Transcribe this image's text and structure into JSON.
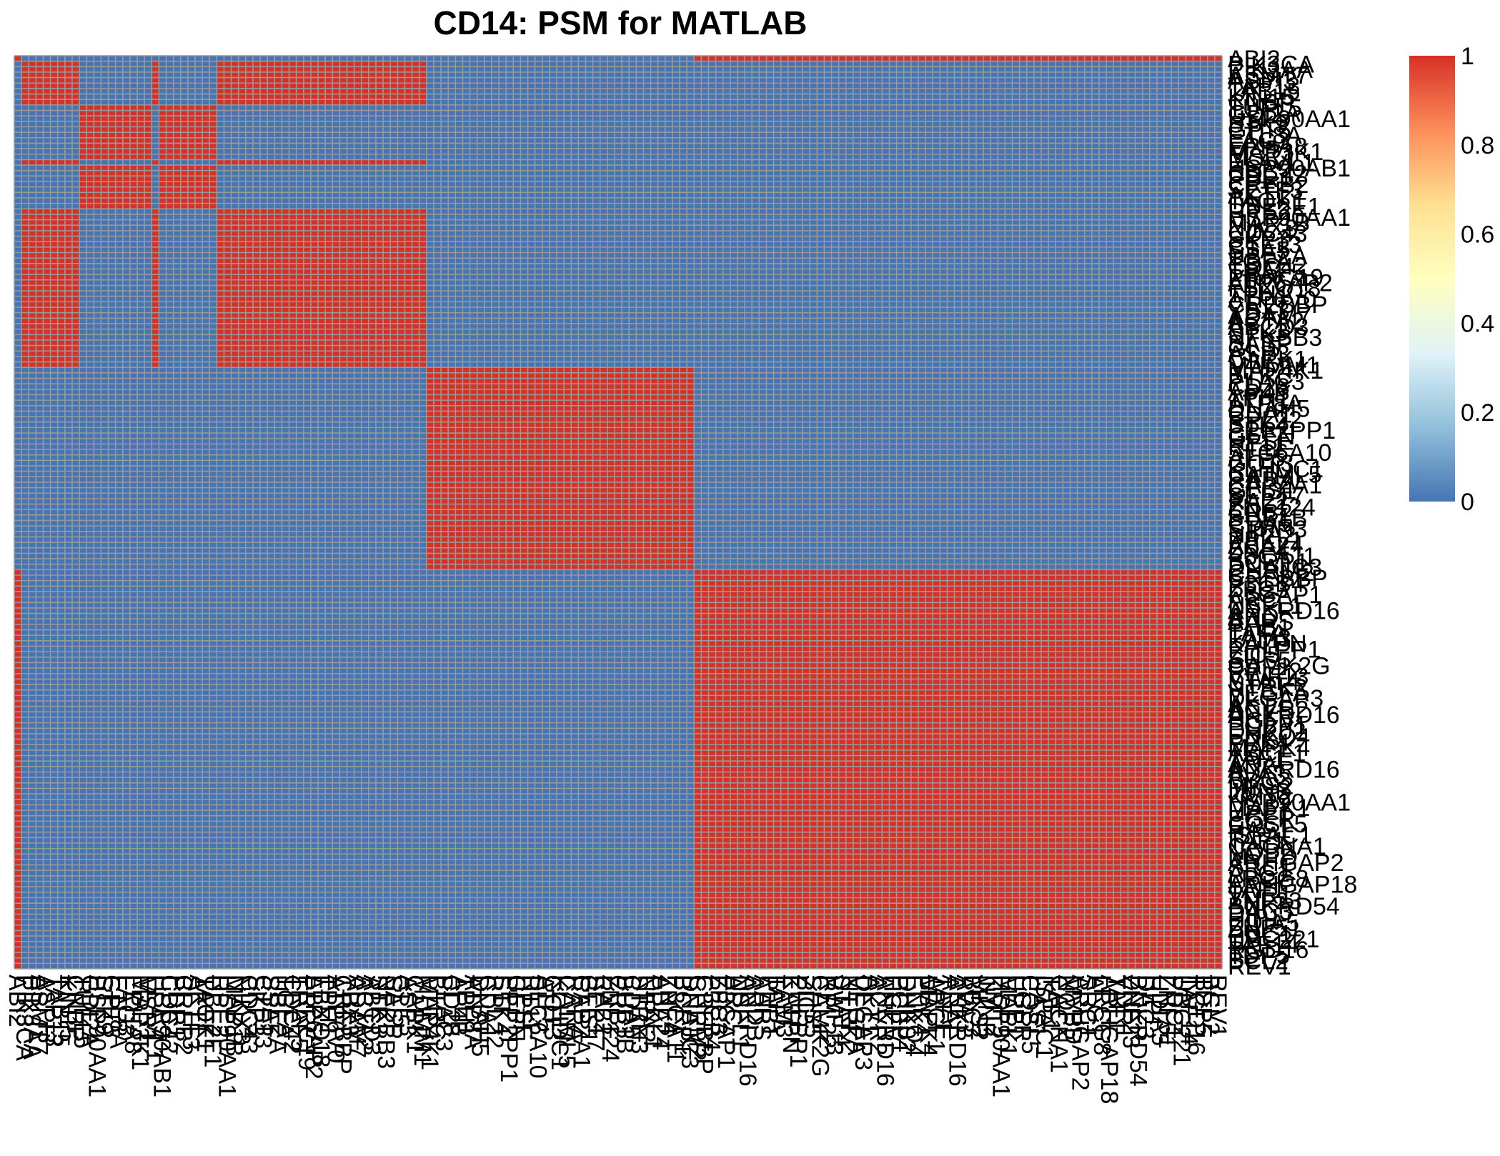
{
  "chart_data": {
    "type": "heatmap",
    "title": "CD14: PSM for MATLAB",
    "xlabel": "",
    "ylabel": "",
    "genes": [
      "ABI2",
      "PIK3CA",
      "PIK3AA",
      "ASMT7",
      "ASPI3",
      "TAP13",
      "TAB15",
      "KIN15",
      "CNBP",
      "TUFL5",
      "GDI2A",
      "HSP90AA1",
      "STK9",
      "GPT5",
      "ETL8A",
      "LAG3",
      "EPHA8",
      "MAP3K1",
      "MSR1",
      "ELAVL1",
      "HSP90AB1",
      "CDC42",
      "PDR1",
      "CREB2",
      "SETF3",
      "AKT1",
      "TAOK1",
      "UBE2E1",
      "RPE2",
      "HSP90AA1",
      "MAP1B",
      "NIKX3",
      "CDC43",
      "SKP3",
      "CTF13",
      "SSA5",
      "UBE2A",
      "TGFA",
      "CDC42",
      "TRAF5",
      "PRRC19",
      "ATP6AP2",
      "FBXO18",
      "TPH1",
      "ATP6V0",
      "CREBBP",
      "YBX3",
      "ADAM7",
      "ACTA2",
      "ABCD3",
      "STK3",
      "NFKBB3",
      "SASP",
      "GLI5",
      "ASP3",
      "CAPK1",
      "MUMM1",
      "MAP4K1",
      "BTRC",
      "PLAC3",
      "CD28",
      "AP4B",
      "TPH1",
      "ATP8A",
      "DNAH5",
      "CDA1",
      "RPL22",
      "STK4",
      "PPP2PP1",
      "GEFN",
      "HPSE",
      "RT11",
      "SLC6A10",
      "ATF5",
      "GOT3",
      "KLHDC1",
      "CATML5",
      "RARA",
      "CAPZA1",
      "GLIS1",
      "SEPT7",
      "RA22",
      "ZNF124",
      "CRB2",
      "BUB1B",
      "CDA5",
      "STRN3",
      "NIPA2",
      "PPKL1",
      "ABA24",
      "ZNF4",
      "P3CA11",
      "BCRP1",
      "DNAJC3",
      "CHRM2",
      "CREBBP",
      "P3CB4",
      "ZFC3",
      "P3GAP1",
      "ARC",
      "NSFL1",
      "ANKRD16",
      "ARD",
      "AARS",
      "PHB1",
      "TAFA",
      "FAM3",
      "KATPN",
      "PHLPP1",
      "ZIC5",
      "SHS5",
      "CAMK2G",
      "RPL22",
      "VWF13",
      "STAT4",
      "NTRK2",
      "VEGFA",
      "DLGAP3",
      "AKT1",
      "ACVR2",
      "ANKRD16",
      "HGFV",
      "PCBP1",
      "DHK02",
      "ENKO4",
      "PPK4",
      "MAPK4",
      "ABCF1",
      "TAF1",
      "ARAF",
      "ANKRD16",
      "AVA3",
      "BBC3",
      "MKS2",
      "JUNB",
      "KMT2",
      "HSP90AA1",
      "MAPK1",
      "UPP1",
      "EGFR",
      "COSL5",
      "HAS1",
      "ISPAC1",
      "TAF1",
      "CACNA1",
      "NOP2",
      "MVPD",
      "ARHGAP2",
      "SRC1",
      "ALG1",
      "LRCG8",
      "ARHGAP18",
      "TAF1",
      "VDR1",
      "ZNF23",
      "BNKRD54",
      "DAC3",
      "HIP1",
      "UDIA5",
      "ZNF51",
      "PDC1",
      "UBC221",
      "TAF14",
      "RGD16",
      "TDP5",
      "BCL2",
      "REV1"
    ],
    "clusters": [
      0,
      1,
      1,
      1,
      1,
      1,
      1,
      1,
      1,
      2,
      2,
      2,
      2,
      2,
      2,
      2,
      2,
      2,
      2,
      1,
      2,
      2,
      2,
      2,
      2,
      2,
      2,
      2,
      1,
      1,
      1,
      1,
      1,
      1,
      1,
      1,
      1,
      1,
      1,
      1,
      1,
      1,
      1,
      1,
      1,
      1,
      1,
      1,
      1,
      1,
      1,
      1,
      1,
      1,
      1,
      1,
      1,
      3,
      3,
      3,
      3,
      3,
      3,
      3,
      3,
      3,
      3,
      3,
      3,
      3,
      3,
      3,
      3,
      3,
      3,
      3,
      3,
      3,
      3,
      3,
      3,
      3,
      3,
      3,
      3,
      3,
      3,
      3,
      3,
      3,
      3,
      3,
      3,
      3,
      0,
      0,
      0,
      0,
      0,
      0,
      0,
      0,
      0,
      0,
      0,
      0,
      0,
      0,
      0,
      0,
      0,
      0,
      0,
      0,
      0,
      0,
      0,
      0,
      0,
      0,
      0,
      0,
      0,
      0,
      0,
      0,
      0,
      0,
      0,
      0,
      0,
      0,
      0,
      0,
      0,
      0,
      0,
      0,
      0,
      0,
      0,
      0,
      0,
      0,
      0,
      0,
      0,
      0,
      0,
      0,
      0,
      0,
      0,
      0,
      0,
      0,
      0,
      0,
      0,
      0,
      0,
      0,
      0,
      0,
      0,
      0,
      0,
      0,
      0,
      0
    ],
    "legend": {
      "ticks": [
        1,
        0.8,
        0.6,
        0.4,
        0.2,
        0
      ],
      "tick_labels": [
        "1",
        "0.8",
        "0.6",
        "0.4",
        "0.2",
        "0"
      ],
      "range": [
        0,
        1
      ],
      "colors": [
        "#4575b4",
        "#91bfdb",
        "#e0f3f8",
        "#ffffbf",
        "#fee090",
        "#fc8d59",
        "#d73027"
      ],
      "placement": "right"
    },
    "cell_border_color": "#999999",
    "high_color": "#d73027",
    "low_color": "#4575b4"
  }
}
